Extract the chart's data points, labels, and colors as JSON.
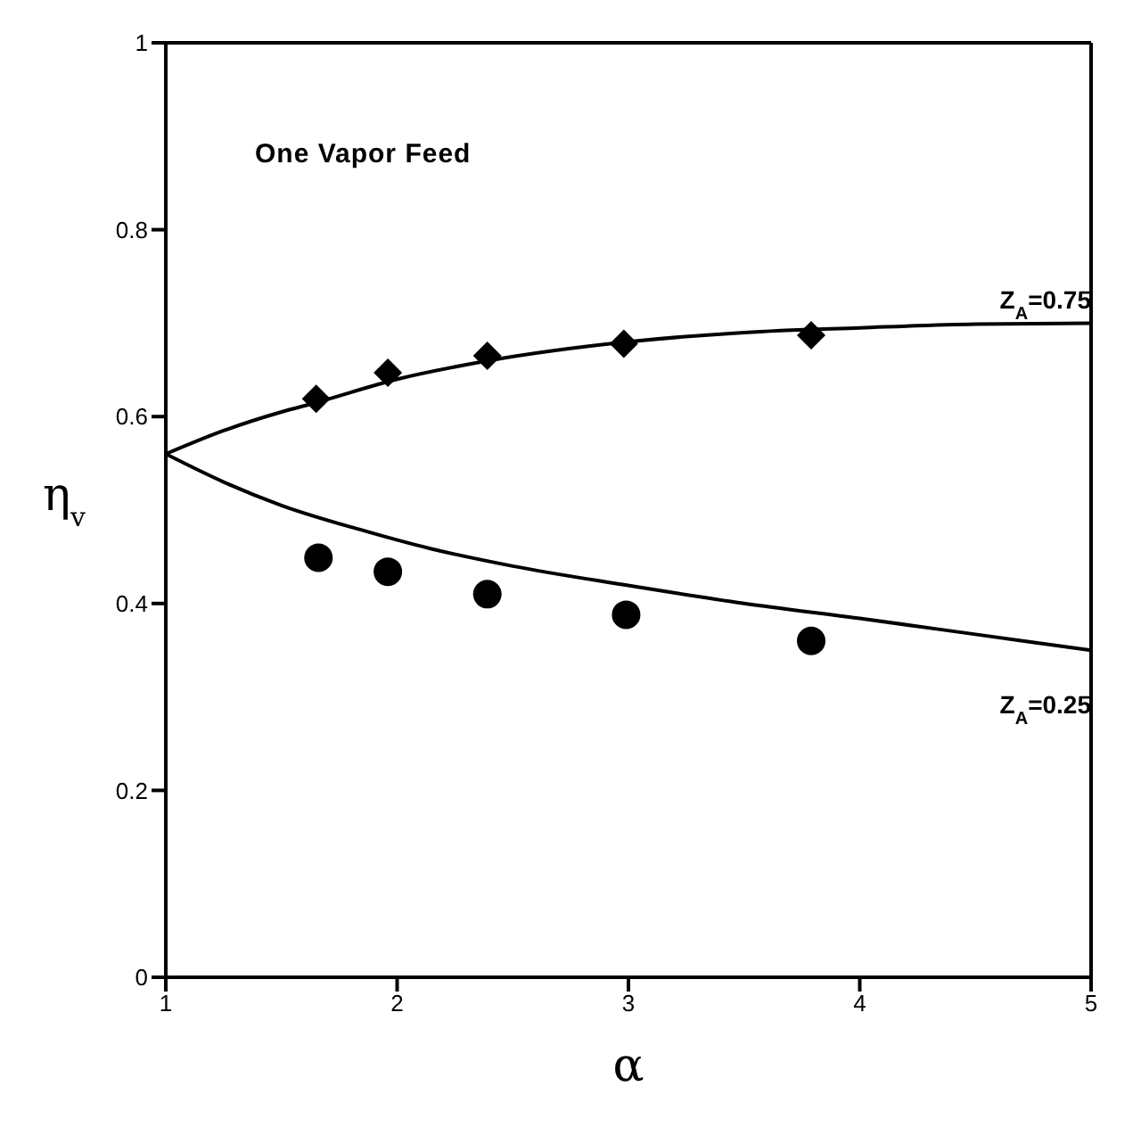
{
  "chart_data": {
    "type": "scatter",
    "title": "One Vapor Feed",
    "xlabel": "α",
    "ylabel": "η$_{v}$",
    "xlim": [
      1,
      5
    ],
    "xticks": [
      1,
      2,
      3,
      4,
      5
    ],
    "ylim": [
      0,
      1
    ],
    "yticks": [
      0,
      0.2,
      0.4,
      0.6,
      0.8,
      1
    ],
    "series": [
      {
        "type": "line",
        "color": "#000000",
        "marker": "none",
        "x": [
          1,
          1.25,
          1.5,
          1.65,
          2,
          2.4,
          3,
          3.5,
          4,
          4.5,
          5
        ],
        "values": [
          0.56,
          0.585,
          0.605,
          0.615,
          0.64,
          0.66,
          0.68,
          0.69,
          0.695,
          0.699,
          0.7
        ]
      },
      {
        "type": "line",
        "color": "#000000",
        "marker": "none",
        "x": [
          1,
          1.25,
          1.5,
          1.87,
          2.14,
          2.5,
          2.98,
          3.5,
          4,
          4.5,
          5
        ],
        "values": [
          0.56,
          0.53,
          0.505,
          0.477,
          0.459,
          0.44,
          0.42,
          0.4,
          0.384,
          0.367,
          0.35
        ]
      },
      {
        "color": "#000000",
        "marker": "diamond",
        "x": [
          1.65,
          1.96,
          2.39,
          2.98,
          3.79
        ],
        "values": [
          0.619,
          0.647,
          0.665,
          0.678,
          0.687
        ]
      },
      {
        "color": "#000000",
        "marker": "circle",
        "x": [
          1.66,
          1.96,
          2.39,
          2.99,
          3.79
        ],
        "values": [
          0.449,
          0.434,
          0.41,
          0.388,
          0.36
        ]
      }
    ],
    "annotations": [
      "Z$_{A}$=0.75",
      "Z$_{A}$=0.25"
    ]
  }
}
